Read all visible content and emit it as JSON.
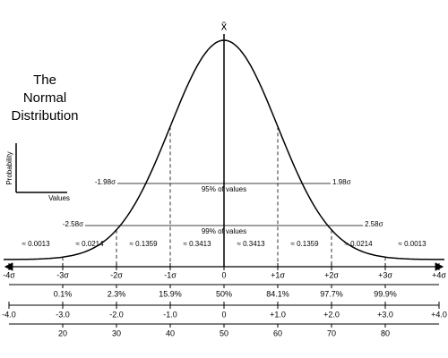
{
  "title_lines": [
    "The",
    "Normal",
    "Distribution"
  ],
  "mean_symbol": "x̄",
  "mini_axes": {
    "y_label": "Probability",
    "x_label": "Values"
  },
  "interval_95": {
    "left": "-1.98σ",
    "right": "1.98σ",
    "label": "95% of values"
  },
  "interval_99": {
    "left": "-2.58σ",
    "right": "2.58σ",
    "label": "99% of values"
  },
  "areas": [
    "≈ 0.0013",
    "≈ 0.0214",
    "≈ 0.1359",
    "≈ 0.3413",
    "≈ 0.3413",
    "≈ 0.1359",
    "≈ 0.0214",
    "≈ 0.0013"
  ],
  "sigma_labels": [
    "-4σ",
    "-3σ",
    "-2σ",
    "-1σ",
    "0",
    "+1σ",
    "+2σ",
    "+3σ",
    "+4σ"
  ],
  "percentiles": [
    "0.1%",
    "2.3%",
    "15.9%",
    "50%",
    "84.1%",
    "97.7%",
    "99.9%"
  ],
  "z_scores": [
    "-4.0",
    "-3.0",
    "-2.0",
    "-1.0",
    "0",
    "+1.0",
    "+2.0",
    "+3.0",
    "+4.0"
  ],
  "t_scores": [
    "20",
    "30",
    "40",
    "50",
    "60",
    "70",
    "80"
  ]
}
